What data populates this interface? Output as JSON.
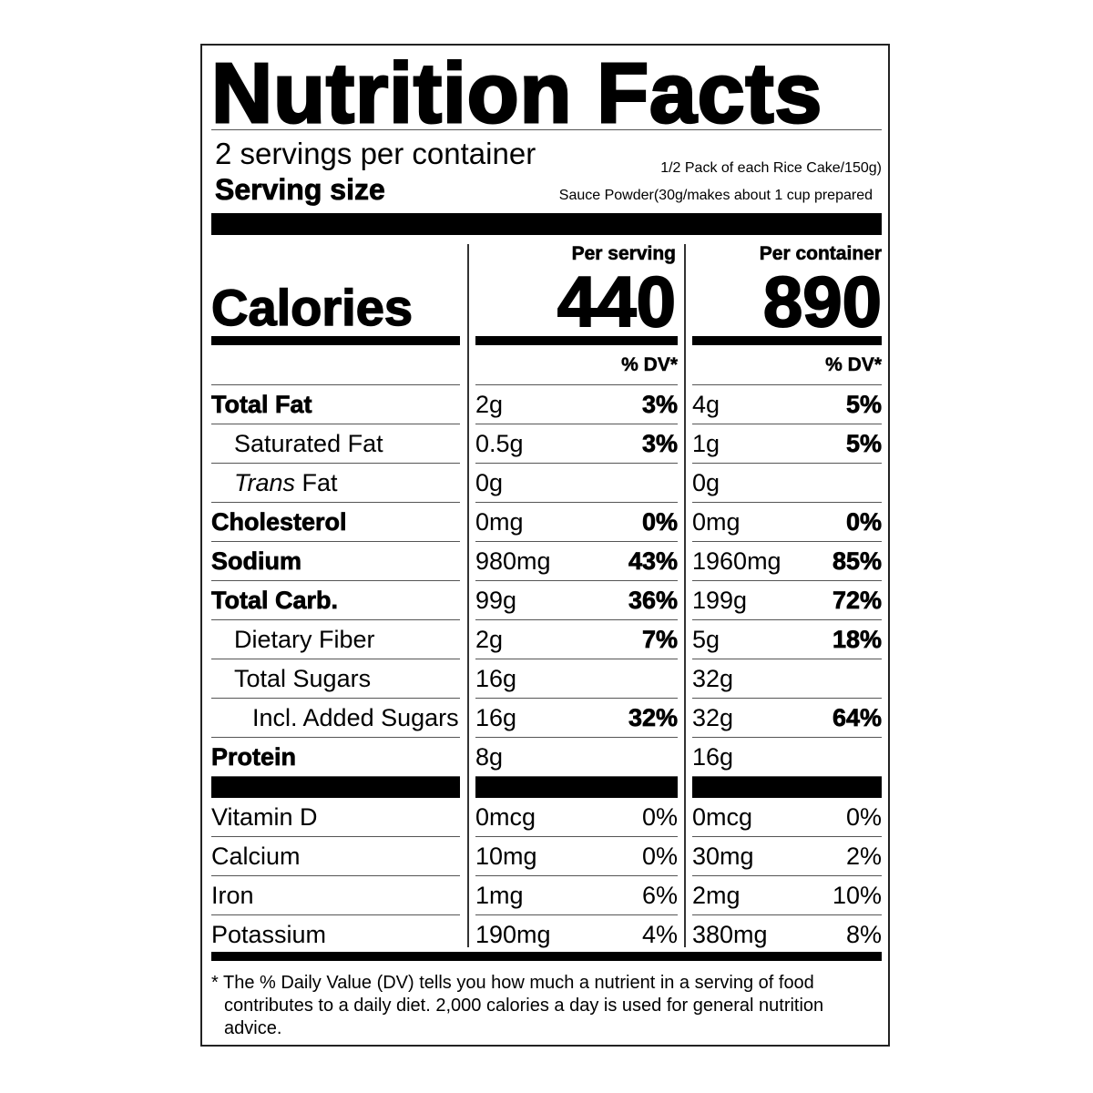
{
  "title": "Nutrition Facts",
  "servings_per_container": "2 servings per container",
  "serving_size_label": "Serving size",
  "serving_size_line1": "1/2 Pack of each Rice Cake/150g)",
  "serving_size_line2": "Sauce Powder(30g/makes about 1 cup prepared",
  "calories_label": "Calories",
  "per_serving_label": "Per serving",
  "per_container_label": "Per container",
  "calories_per_serving": "440",
  "calories_per_container": "890",
  "dv_label": "% DV*",
  "nutrients": [
    {
      "name": "Total Fat",
      "style": "bold",
      "serving_amount": "2g",
      "serving_dv": "3%",
      "container_amount": "4g",
      "container_dv": "5%"
    },
    {
      "name": "Saturated Fat",
      "style": "indent1",
      "serving_amount": "0.5g",
      "serving_dv": "3%",
      "container_amount": "1g",
      "container_dv": "5%"
    },
    {
      "name_italic": "Trans",
      "name": " Fat",
      "style": "indent1",
      "serving_amount": "0g",
      "serving_dv": "",
      "container_amount": "0g",
      "container_dv": ""
    },
    {
      "name": "Cholesterol",
      "style": "bold",
      "serving_amount": "0mg",
      "serving_dv": "0%",
      "container_amount": "0mg",
      "container_dv": "0%"
    },
    {
      "name": "Sodium",
      "style": "bold",
      "serving_amount": "980mg",
      "serving_dv": "43%",
      "container_amount": "1960mg",
      "container_dv": "85%"
    },
    {
      "name": "Total Carb.",
      "style": "bold",
      "serving_amount": "99g",
      "serving_dv": "36%",
      "container_amount": "199g",
      "container_dv": "72%"
    },
    {
      "name": "Dietary Fiber",
      "style": "indent1",
      "serving_amount": "2g",
      "serving_dv": "7%",
      "container_amount": "5g",
      "container_dv": "18%"
    },
    {
      "name": "Total Sugars",
      "style": "indent1",
      "serving_amount": "16g",
      "serving_dv": "",
      "container_amount": "32g",
      "container_dv": ""
    },
    {
      "name": "Incl. Added Sugars",
      "style": "indent2",
      "serving_amount": "16g",
      "serving_dv": "32%",
      "container_amount": "32g",
      "container_dv": "64%"
    },
    {
      "name": "Protein",
      "style": "bold",
      "serving_amount": "8g",
      "serving_dv": "",
      "container_amount": "16g",
      "container_dv": ""
    }
  ],
  "vitamins": [
    {
      "name": "Vitamin D",
      "serving_amount": "0mcg",
      "serving_dv": "0%",
      "container_amount": "0mcg",
      "container_dv": "0%"
    },
    {
      "name": "Calcium",
      "serving_amount": "10mg",
      "serving_dv": "0%",
      "container_amount": "30mg",
      "container_dv": "2%"
    },
    {
      "name": "Iron",
      "serving_amount": "1mg",
      "serving_dv": "6%",
      "container_amount": "2mg",
      "container_dv": "10%"
    },
    {
      "name": "Potassium",
      "serving_amount": "190mg",
      "serving_dv": "4%",
      "container_amount": "380mg",
      "container_dv": "8%"
    }
  ],
  "footnote": "* The % Daily Value (DV) tells you how much a nutrient in a serving of food contributes to a daily diet. 2,000 calories a day is used for general nutrition advice."
}
